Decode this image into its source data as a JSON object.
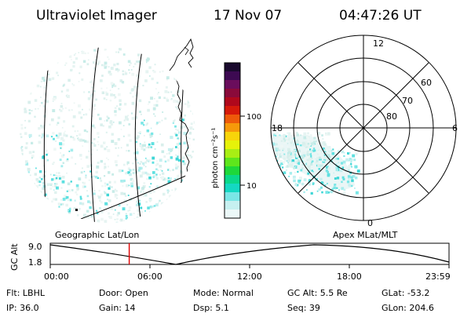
{
  "header": {
    "instrument": "Ultraviolet Imager",
    "date": "17 Nov 07",
    "time": "04:47:26 UT"
  },
  "left_panel": {
    "caption": "Geographic Lat/Lon"
  },
  "right_panel": {
    "caption": "Apex MLat/MLT",
    "mlt_labels": {
      "top": "12",
      "bottom": "0",
      "left": "18",
      "right": "6"
    },
    "lat_labels": [
      "60",
      "70",
      "80"
    ]
  },
  "colorbar": {
    "unit": "photon cm⁻²s⁻¹",
    "ticks": [
      "100",
      "10"
    ],
    "colors": [
      "#1a0a2e",
      "#3d0a52",
      "#6a0d5c",
      "#8a0a3a",
      "#b0081c",
      "#d61a0a",
      "#ee5a0a",
      "#f6990a",
      "#f8d40a",
      "#e6f20a",
      "#a8ee14",
      "#5ee61c",
      "#1ed83a",
      "#0ad88a",
      "#14d8c2",
      "#7ae6e6",
      "#c6f0f0",
      "#ecf8f8"
    ]
  },
  "altitude_plot": {
    "ylabel": "GC Alt",
    "yticks": [
      "9.0",
      "1.8"
    ],
    "xticks": [
      "00:00",
      "06:00",
      "12:00",
      "18:00",
      "23:59"
    ],
    "current_fraction": 0.198,
    "marker_color": "#e00000"
  },
  "info": {
    "flt": "Flt: LBHL",
    "ip": "IP: 36.0",
    "door": "Door: Open",
    "gain": "Gain: 14",
    "mode": "Mode: Normal",
    "dsp": "Dsp:    5.1",
    "gcalt": "GC Alt: 5.5 Re",
    "seq": "Seq: 39",
    "glat": "GLat: -53.2",
    "glon": "GLon: 204.6"
  }
}
